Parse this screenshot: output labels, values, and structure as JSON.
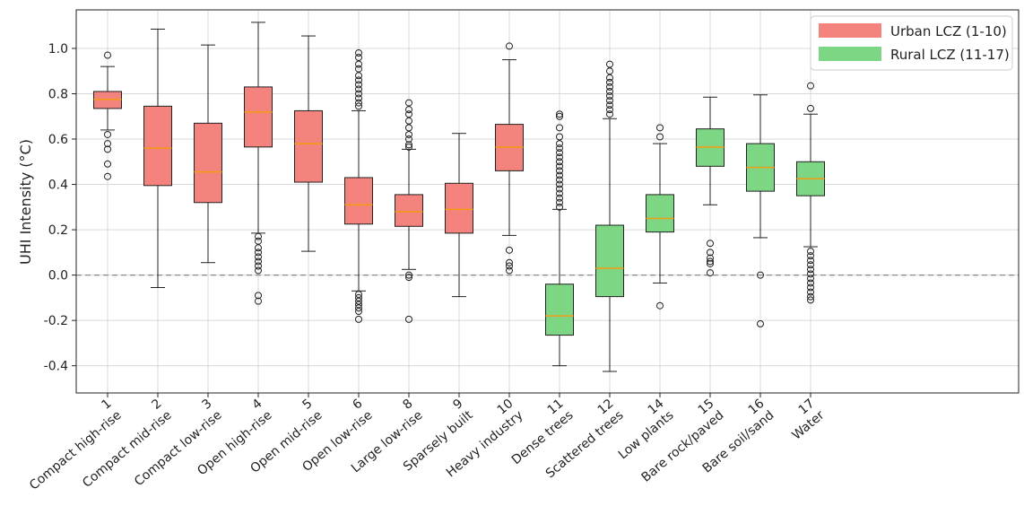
{
  "chart_data": {
    "type": "boxplot",
    "ylabel": "UHI Intensity (°C)",
    "xlabel": "",
    "ylim": [
      -0.52,
      1.17
    ],
    "yticks": [
      "1.0",
      "0.8",
      "0.6",
      "0.4",
      "0.2",
      "0.0",
      "-0.2",
      "-0.4"
    ],
    "ytick_values": [
      1.0,
      0.8,
      0.6,
      0.4,
      0.2,
      0.0,
      -0.2,
      -0.4
    ],
    "grid": true,
    "reference_line": {
      "y": 0.0,
      "style": "dashed"
    },
    "legend_position": "top-right",
    "legend": [
      {
        "label": "Urban LCZ (1-10)",
        "color": "#f4837d"
      },
      {
        "label": "Rural LCZ (11-17)",
        "color": "#7dd684"
      }
    ],
    "categories": [
      {
        "num": "1",
        "name": "Compact high-rise",
        "group": "urban",
        "whislo": 0.64,
        "q1": 0.735,
        "med": 0.775,
        "q3": 0.81,
        "whishi": 0.92,
        "fliers": [
          0.97,
          0.62,
          0.58,
          0.555,
          0.49,
          0.435
        ]
      },
      {
        "num": "2",
        "name": "Compact mid-rise",
        "group": "urban",
        "whislo": -0.055,
        "q1": 0.395,
        "med": 0.56,
        "q3": 0.745,
        "whishi": 1.085,
        "fliers": []
      },
      {
        "num": "3",
        "name": "Compact low-rise",
        "group": "urban",
        "whislo": 0.055,
        "q1": 0.32,
        "med": 0.455,
        "q3": 0.67,
        "whishi": 1.015,
        "fliers": []
      },
      {
        "num": "4",
        "name": "Open high-rise",
        "group": "urban",
        "whislo": 0.185,
        "q1": 0.565,
        "med": 0.72,
        "q3": 0.83,
        "whishi": 1.115,
        "fliers": [
          0.17,
          0.15,
          0.12,
          0.1,
          0.08,
          0.06,
          0.04,
          0.02,
          -0.09,
          -0.115
        ]
      },
      {
        "num": "5",
        "name": "Open mid-rise",
        "group": "urban",
        "whislo": 0.105,
        "q1": 0.41,
        "med": 0.58,
        "q3": 0.725,
        "whishi": 1.055,
        "fliers": []
      },
      {
        "num": "6",
        "name": "Open low-rise",
        "group": "urban",
        "whislo": -0.07,
        "q1": 0.225,
        "med": 0.31,
        "q3": 0.43,
        "whishi": 0.725,
        "fliers": [
          0.98,
          0.96,
          0.93,
          0.91,
          0.88,
          0.86,
          0.84,
          0.82,
          0.8,
          0.78,
          0.76,
          0.745,
          -0.085,
          -0.1,
          -0.115,
          -0.13,
          -0.145,
          -0.16,
          -0.195
        ]
      },
      {
        "num": "8",
        "name": "Large low-rise",
        "group": "urban",
        "whislo": 0.025,
        "q1": 0.215,
        "med": 0.28,
        "q3": 0.355,
        "whishi": 0.555,
        "fliers": [
          0.76,
          0.73,
          0.71,
          0.68,
          0.65,
          0.62,
          0.6,
          0.575,
          0.565,
          0.0,
          -0.01,
          -0.195
        ]
      },
      {
        "num": "9",
        "name": "Sparsely built",
        "group": "urban",
        "whislo": -0.095,
        "q1": 0.185,
        "med": 0.29,
        "q3": 0.405,
        "whishi": 0.625,
        "fliers": []
      },
      {
        "num": "10",
        "name": "Heavy industry",
        "group": "urban",
        "whislo": 0.175,
        "q1": 0.46,
        "med": 0.565,
        "q3": 0.665,
        "whishi": 0.95,
        "fliers": [
          1.01,
          0.11,
          0.055,
          0.04,
          0.02
        ]
      },
      {
        "num": "11",
        "name": "Dense trees",
        "group": "rural",
        "whislo": -0.4,
        "q1": -0.265,
        "med": -0.18,
        "q3": -0.04,
        "whishi": 0.29,
        "fliers": [
          0.71,
          0.7,
          0.65,
          0.61,
          0.58,
          0.56,
          0.54,
          0.52,
          0.5,
          0.48,
          0.46,
          0.44,
          0.42,
          0.4,
          0.38,
          0.36,
          0.34,
          0.32,
          0.3
        ]
      },
      {
        "num": "12",
        "name": "Scattered trees",
        "group": "rural",
        "whislo": -0.425,
        "q1": -0.095,
        "med": 0.03,
        "q3": 0.22,
        "whishi": 0.69,
        "fliers": [
          0.93,
          0.9,
          0.87,
          0.85,
          0.83,
          0.81,
          0.79,
          0.77,
          0.75,
          0.73,
          0.71
        ]
      },
      {
        "num": "14",
        "name": "Low plants",
        "group": "rural",
        "whislo": -0.035,
        "q1": 0.19,
        "med": 0.25,
        "q3": 0.355,
        "whishi": 0.58,
        "fliers": [
          0.65,
          0.61,
          -0.135
        ]
      },
      {
        "num": "15",
        "name": "Bare rock/paved",
        "group": "rural",
        "whislo": 0.31,
        "q1": 0.48,
        "med": 0.565,
        "q3": 0.645,
        "whishi": 0.785,
        "fliers": [
          0.14,
          0.1,
          0.075,
          0.06,
          0.05,
          0.01
        ]
      },
      {
        "num": "16",
        "name": "Bare soil/sand",
        "group": "rural",
        "whislo": 0.165,
        "q1": 0.37,
        "med": 0.475,
        "q3": 0.58,
        "whishi": 0.795,
        "fliers": [
          0.0,
          -0.215
        ]
      },
      {
        "num": "17",
        "name": "Water",
        "group": "rural",
        "whislo": 0.125,
        "q1": 0.35,
        "med": 0.425,
        "q3": 0.5,
        "whishi": 0.71,
        "fliers": [
          0.835,
          0.735,
          0.105,
          0.085,
          0.065,
          0.045,
          0.025,
          0.005,
          -0.015,
          -0.035,
          -0.055,
          -0.075,
          -0.095,
          -0.11
        ]
      }
    ]
  },
  "colors": {
    "urban": "#f4837d",
    "rural": "#7dd684",
    "median": "#f39c12",
    "grid": "#d9d9d9"
  }
}
